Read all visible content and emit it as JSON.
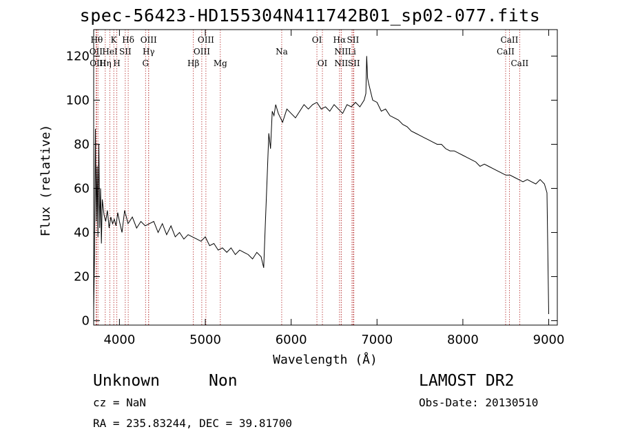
{
  "header": {
    "title": "spec-56423-HD155304N411742B01_sp02-077.fits"
  },
  "info": {
    "class": "Unknown",
    "subclass": "Non",
    "cz": "cz = NaN",
    "coords": "RA = 235.83244, DEC =  39.81700",
    "survey": "LAMOST DR2",
    "obs_date": "Obs-Date: 20130510"
  },
  "chart_data": {
    "type": "line",
    "xlabel": "Wavelength (Å)",
    "ylabel": "Flux (relative)",
    "xlim": [
      3700,
      9100
    ],
    "ylim": [
      -2,
      132
    ],
    "xticks": [
      4000,
      5000,
      6000,
      7000,
      8000,
      9000
    ],
    "yticks": [
      0,
      20,
      40,
      60,
      80,
      100,
      120
    ],
    "grid": false,
    "line_color": "#000000",
    "marker_color": "#b22222",
    "series": [
      {
        "x": [
          3700,
          3710,
          3720,
          3730,
          3740,
          3750,
          3760,
          3770,
          3780,
          3790,
          3800,
          3820,
          3840,
          3860,
          3880,
          3900,
          3920,
          3940,
          3960,
          3980,
          4000,
          4030,
          4060,
          4100,
          4150,
          4200,
          4250,
          4300,
          4350,
          4400,
          4450,
          4500,
          4550,
          4600,
          4650,
          4700,
          4750,
          4800,
          4850,
          4900,
          4950,
          5000,
          5050,
          5100,
          5150,
          5200,
          5250,
          5300,
          5350,
          5400,
          5450,
          5500,
          5550,
          5600,
          5650,
          5680,
          5700,
          5720,
          5740,
          5760,
          5780,
          5800,
          5820,
          5850,
          5900,
          5950,
          6000,
          6050,
          6100,
          6150,
          6200,
          6250,
          6300,
          6350,
          6400,
          6450,
          6500,
          6550,
          6600,
          6650,
          6700,
          6750,
          6800,
          6850,
          6870,
          6880,
          6890,
          6900,
          6950,
          7000,
          7050,
          7100,
          7150,
          7200,
          7250,
          7300,
          7350,
          7400,
          7450,
          7500,
          7550,
          7600,
          7650,
          7700,
          7750,
          7800,
          7850,
          7900,
          7950,
          8000,
          8050,
          8100,
          8150,
          8200,
          8250,
          8300,
          8350,
          8400,
          8450,
          8500,
          8550,
          8600,
          8650,
          8700,
          8750,
          8800,
          8850,
          8900,
          8950,
          8980,
          9000
        ],
        "values": [
          5,
          30,
          87,
          45,
          70,
          38,
          80,
          42,
          60,
          35,
          55,
          48,
          45,
          50,
          42,
          47,
          44,
          46,
          43,
          49,
          45,
          40,
          50,
          44,
          47,
          42,
          45,
          43,
          44,
          45,
          40,
          44,
          39,
          43,
          38,
          40,
          37,
          39,
          38,
          37,
          36,
          38,
          34,
          35,
          32,
          33,
          31,
          33,
          30,
          32,
          31,
          30,
          28,
          31,
          29,
          24,
          45,
          65,
          85,
          78,
          95,
          93,
          98,
          94,
          90,
          96,
          94,
          92,
          95,
          98,
          96,
          98,
          99,
          96,
          97,
          95,
          98,
          96,
          94,
          98,
          97,
          99,
          97,
          100,
          103,
          120,
          110,
          108,
          100,
          99,
          95,
          96,
          93,
          92,
          91,
          89,
          88,
          86,
          85,
          84,
          83,
          82,
          81,
          80,
          80,
          78,
          77,
          77,
          76,
          75,
          74,
          73,
          72,
          70,
          71,
          70,
          69,
          68,
          67,
          66,
          66,
          65,
          64,
          63,
          64,
          63,
          62,
          64,
          62,
          58,
          3
        ]
      }
    ],
    "lines_top": [
      {
        "w": 3735,
        "label": "Hθ"
      },
      {
        "w": 3934,
        "label": "K"
      },
      {
        "w": 4102,
        "label": "Hδ"
      },
      {
        "w": 4340,
        "label": "OIII"
      },
      {
        "w": 5007,
        "label": "OIII"
      },
      {
        "w": 6300,
        "label": "OI"
      },
      {
        "w": 6563,
        "label": "Hα"
      },
      {
        "w": 6720,
        "label": "SII"
      },
      {
        "w": 8542,
        "label": "CaII"
      }
    ],
    "lines_mid": [
      {
        "w": 3727,
        "label": "OII"
      },
      {
        "w": 3889,
        "label": "HeI"
      },
      {
        "w": 4068,
        "label": "SII"
      },
      {
        "w": 4340,
        "label": "Hγ"
      },
      {
        "w": 4959,
        "label": "OIII"
      },
      {
        "w": 5890,
        "label": "Na"
      },
      {
        "w": 6583,
        "label": "NII"
      },
      {
        "w": 6708,
        "label": "Li"
      },
      {
        "w": 8498,
        "label": "CaII"
      }
    ],
    "lines_bot": [
      {
        "w": 3750,
        "label": "OIII"
      },
      {
        "w": 3835,
        "label": "Hη"
      },
      {
        "w": 3970,
        "label": "H"
      },
      {
        "w": 4304,
        "label": "G"
      },
      {
        "w": 4861,
        "label": "Hβ"
      },
      {
        "w": 5175,
        "label": "Mg"
      },
      {
        "w": 6364,
        "label": "OI"
      },
      {
        "w": 6583,
        "label": "NII"
      },
      {
        "w": 6731,
        "label": "SII"
      },
      {
        "w": 8662,
        "label": "CaII"
      }
    ]
  }
}
